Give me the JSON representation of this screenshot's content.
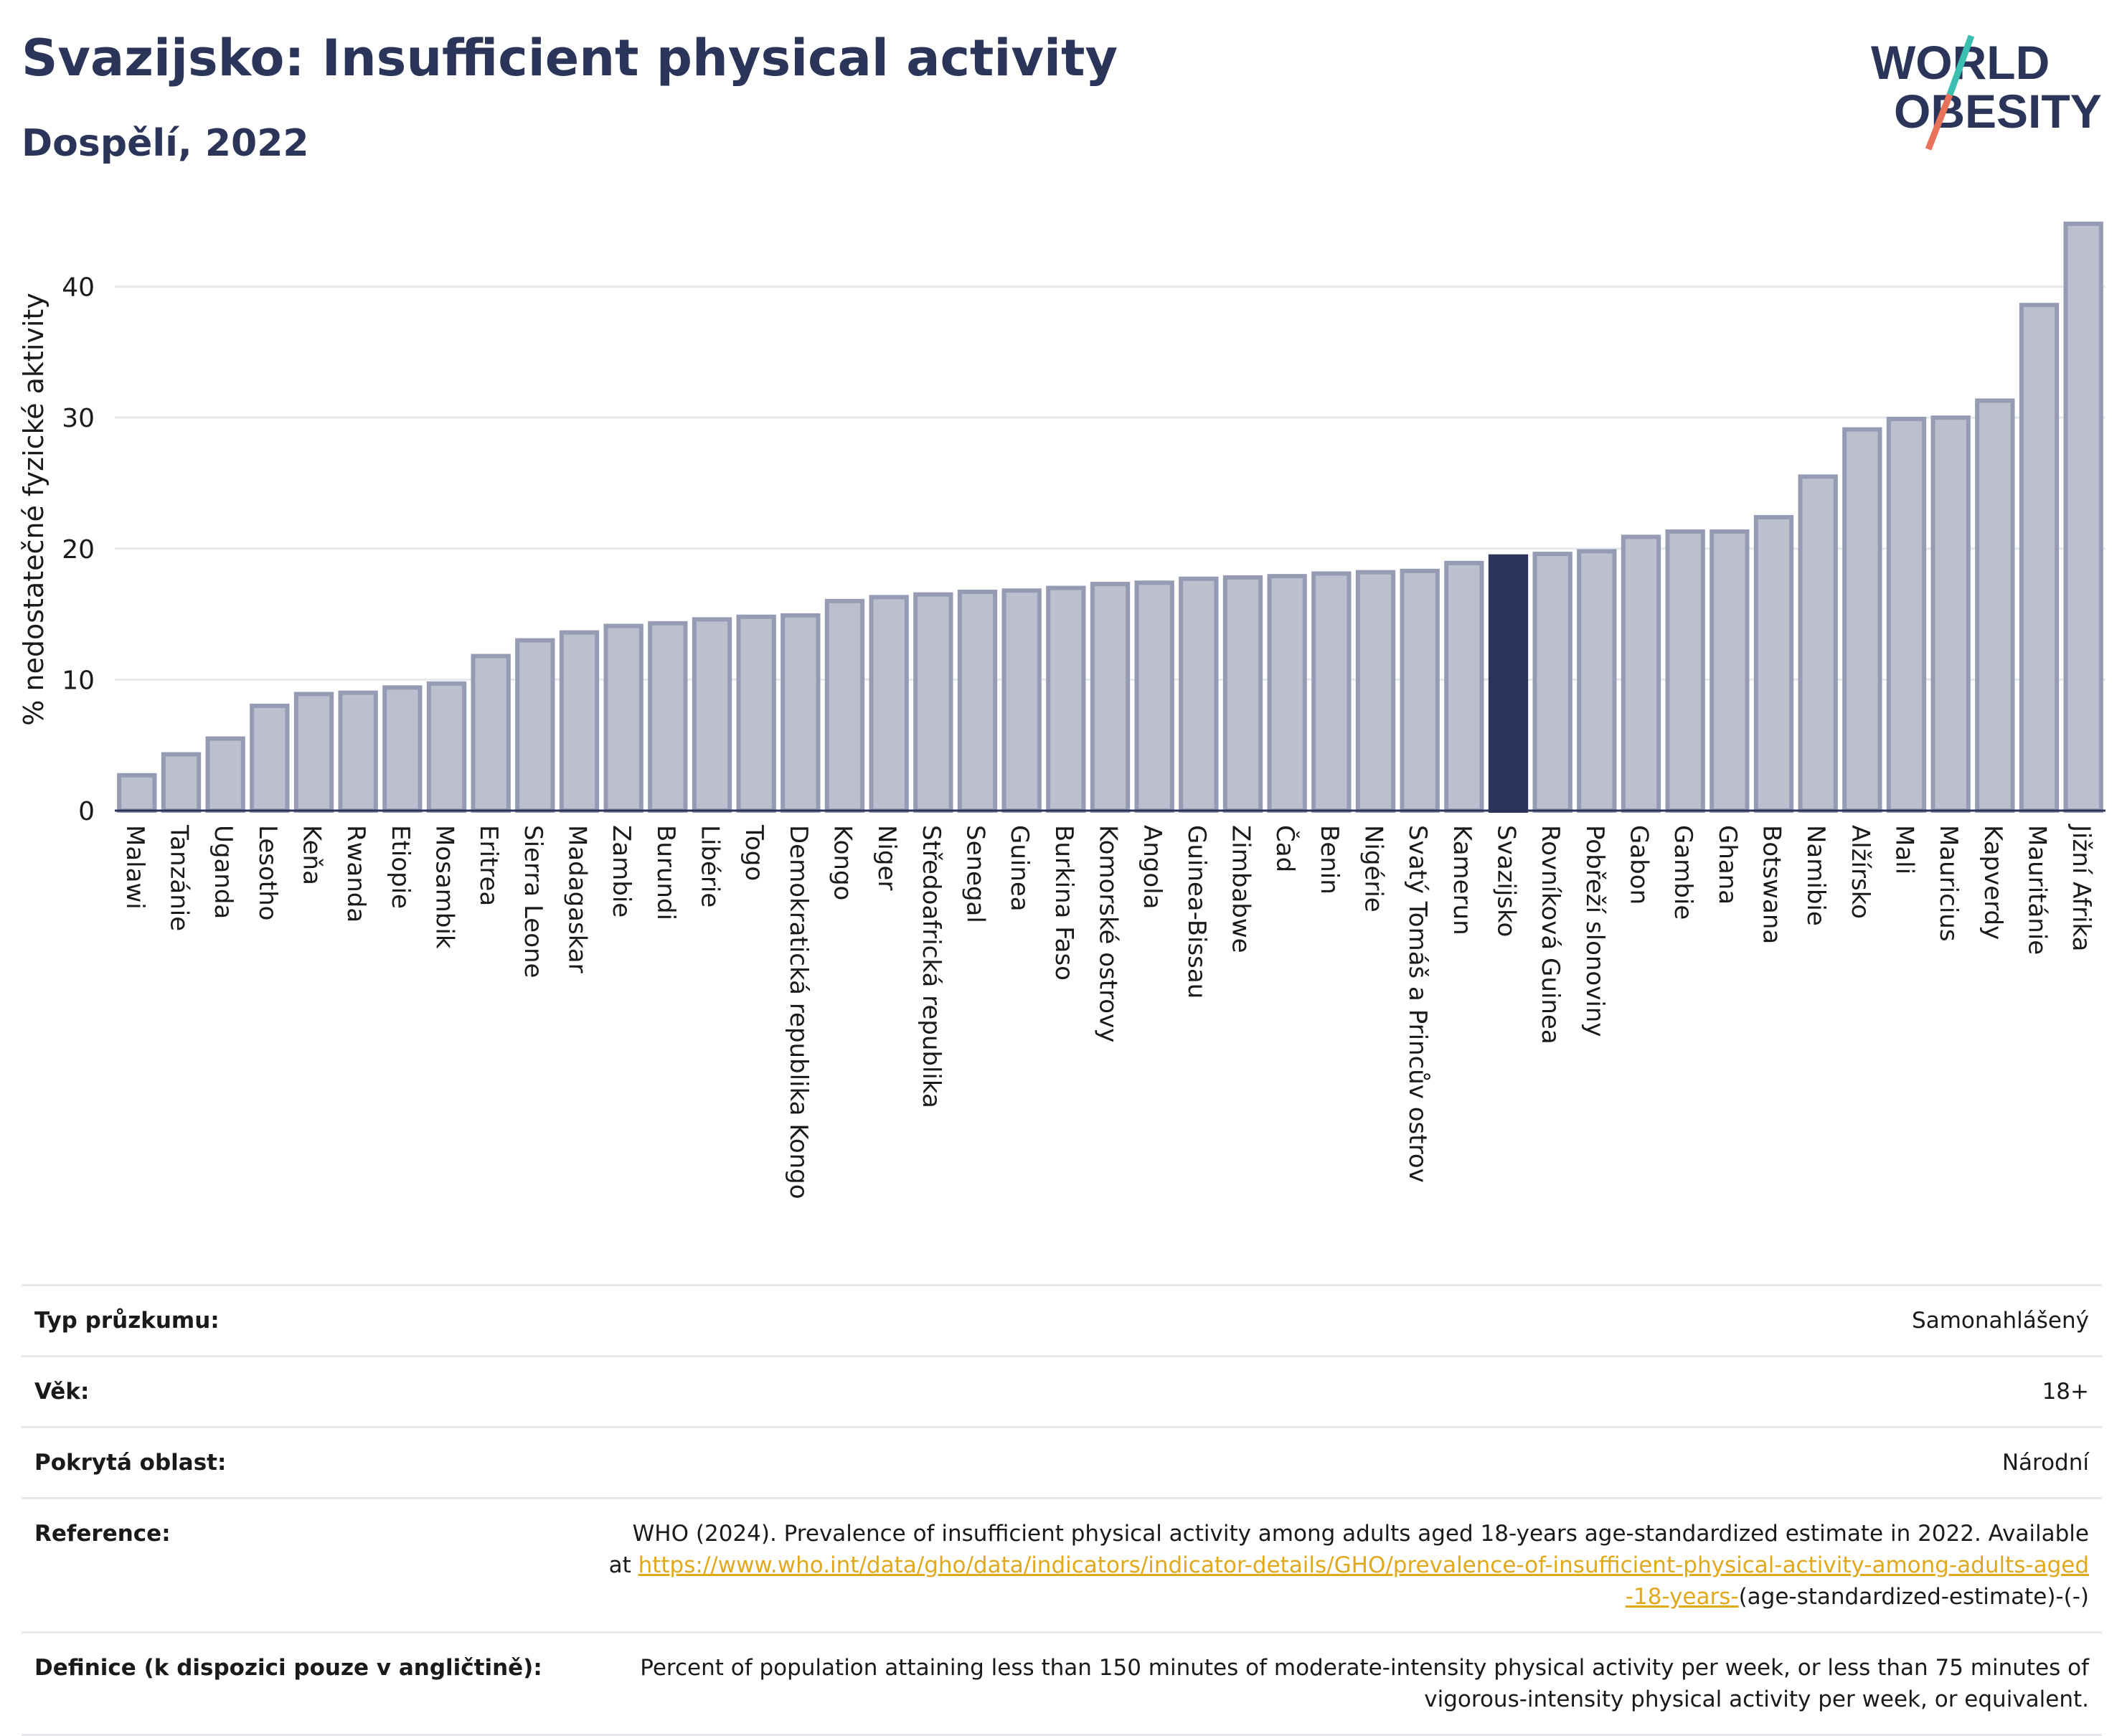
{
  "header": {
    "title": "Svazijsko: Insufficient physical activity",
    "subtitle": "Dospělí, 2022"
  },
  "logo": {
    "line1": "WORLD",
    "line2": "OBESITY",
    "accent_colors": [
      "#3bbfb0",
      "#e8735a"
    ]
  },
  "colors": {
    "bar": "#bcc0ce",
    "bar_border": "#959bb3",
    "highlight": "#2a3559",
    "grid": "#e6e8ee",
    "text": "#2a3559"
  },
  "chart_data": {
    "type": "bar",
    "ylabel": "% nedostatečné fyzické aktivity",
    "xlabel": "",
    "ylim": [
      0,
      46
    ],
    "yticks": [
      0,
      10,
      20,
      30,
      40
    ],
    "grid": true,
    "highlight": "Svazijsko",
    "categories": [
      "Malawi",
      "Tanzánie",
      "Uganda",
      "Lesotho",
      "Keňa",
      "Rwanda",
      "Etiopie",
      "Mosambik",
      "Eritrea",
      "Sierra Leone",
      "Madagaskar",
      "Zambie",
      "Burundi",
      "Libérie",
      "Togo",
      "Demokratická republika Kongo",
      "Kongo",
      "Niger",
      "Středoafrická republika",
      "Senegal",
      "Guinea",
      "Burkina Faso",
      "Komorské ostrovy",
      "Angola",
      "Guinea-Bissau",
      "Zimbabwe",
      "Čad",
      "Benin",
      "Nigérie",
      "Svatý Tomáš a Princův ostrov",
      "Kamerun",
      "Svazijsko",
      "Rovníková Guinea",
      "Pobřeží slonoviny",
      "Gabon",
      "Gambie",
      "Ghana",
      "Botswana",
      "Namibie",
      "Alžírsko",
      "Mali",
      "Mauricius",
      "Kapverdy",
      "Mauritánie",
      "Jižní Afrika"
    ],
    "values": [
      2.7,
      4.3,
      5.5,
      8.0,
      8.9,
      9.0,
      9.4,
      9.7,
      11.8,
      13.0,
      13.6,
      14.1,
      14.3,
      14.6,
      14.8,
      14.9,
      16.0,
      16.3,
      16.5,
      16.7,
      16.8,
      17.0,
      17.3,
      17.4,
      17.7,
      17.8,
      17.9,
      18.1,
      18.2,
      18.3,
      18.9,
      19.4,
      19.6,
      19.8,
      20.9,
      21.3,
      21.3,
      22.4,
      25.5,
      29.1,
      29.9,
      30.0,
      31.3,
      38.6,
      44.8
    ]
  },
  "info": {
    "survey_type": {
      "label": "Typ průzkumu:",
      "value": "Samonahlášený"
    },
    "age": {
      "label": "Věk:",
      "value": "18+"
    },
    "area": {
      "label": "Pokrytá oblast:",
      "value": "Národní"
    },
    "reference": {
      "label": "Reference:",
      "text": "WHO (2024). Prevalence of insufficient physical activity among adults aged 18-years age-standardized estimate in 2022. Available at",
      "link": "https://www.who.int/data/gho/data/indicators/indicator-details/GHO/prevalence-of-insufficient-physical-activity-among-adults-aged-18-years-",
      "suffix": "(age-standardized-estimate)-(-)"
    },
    "definition": {
      "label": "Definice (k dispozici pouze v angličtině):",
      "value": "Percent of population attaining less than 150 minutes of moderate-intensity physical activity per week, or less than 75 minutes of vigorous-intensity physical activity per week, or equivalent."
    }
  }
}
